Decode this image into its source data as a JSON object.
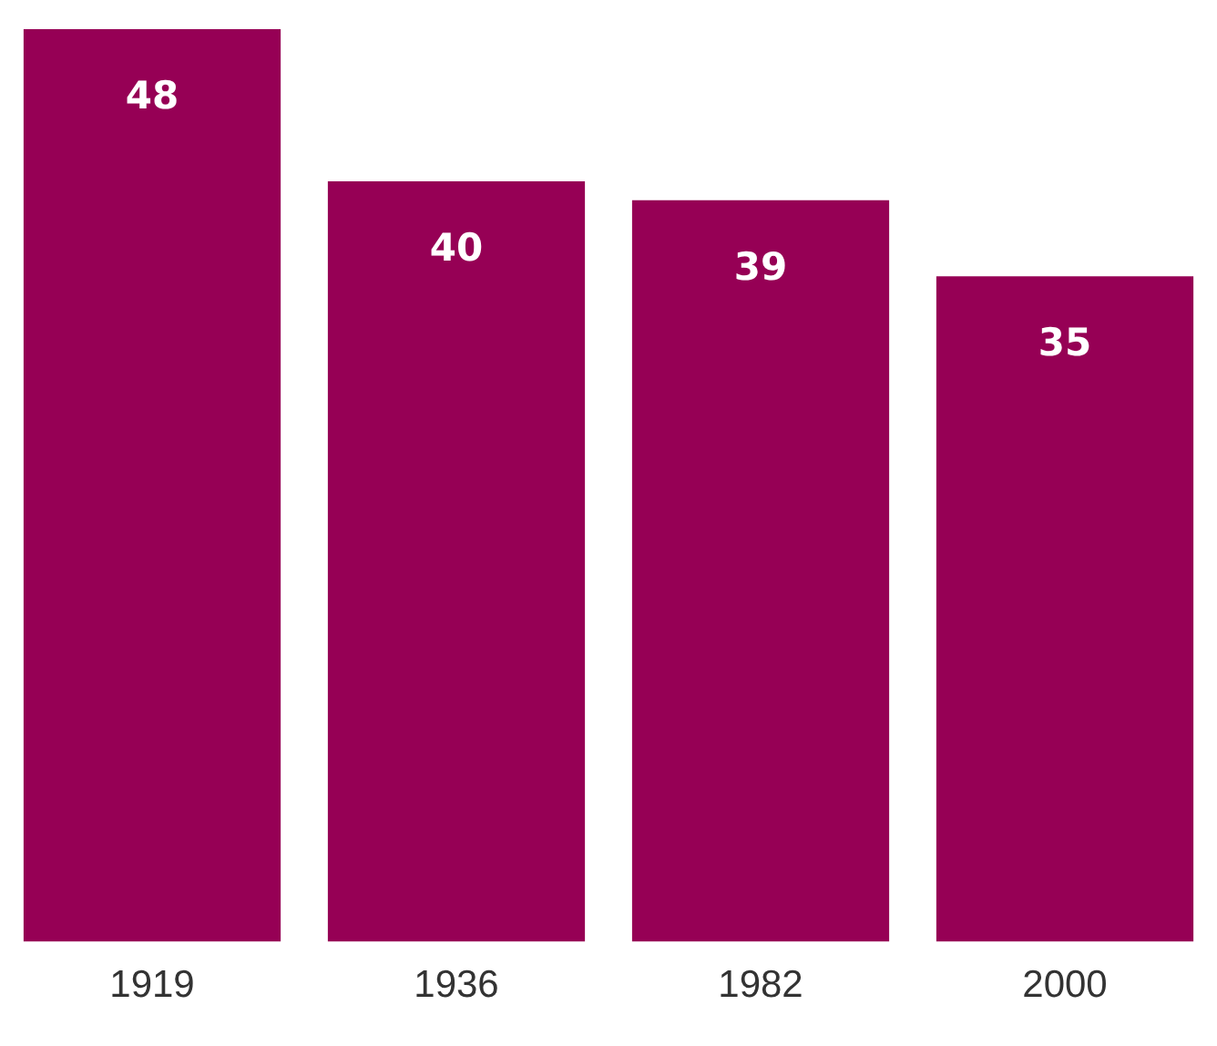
{
  "chart_data": {
    "type": "bar",
    "categories": [
      "1919",
      "1936",
      "1982",
      "2000"
    ],
    "values": [
      48,
      40,
      39,
      35
    ],
    "color": "#960055",
    "data_labels": true,
    "grid": false,
    "legend": false
  }
}
